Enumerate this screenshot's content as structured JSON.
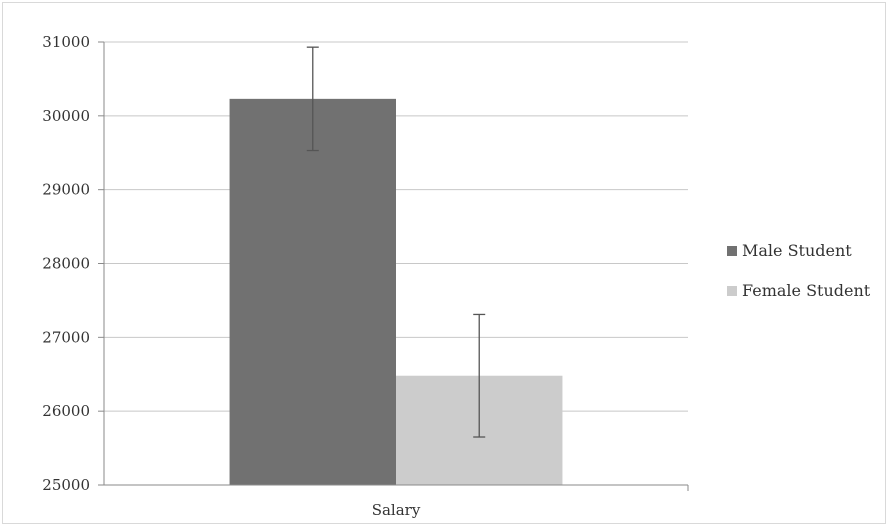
{
  "chart_data": {
    "type": "bar",
    "categories": [
      "Salary"
    ],
    "series": [
      {
        "name": "Male Student",
        "values": [
          30230
        ],
        "error": [
          700
        ],
        "color": "#717171"
      },
      {
        "name": "Female Student",
        "values": [
          26480
        ],
        "error": [
          830
        ],
        "color": "#cccccc"
      }
    ],
    "ylim": [
      25000,
      31000
    ],
    "yticks": [
      "25000",
      "26000",
      "27000",
      "28000",
      "29000",
      "30000",
      "31000"
    ],
    "grid": true,
    "legend_position": "right",
    "title": "",
    "xlabel": "",
    "ylabel": ""
  }
}
